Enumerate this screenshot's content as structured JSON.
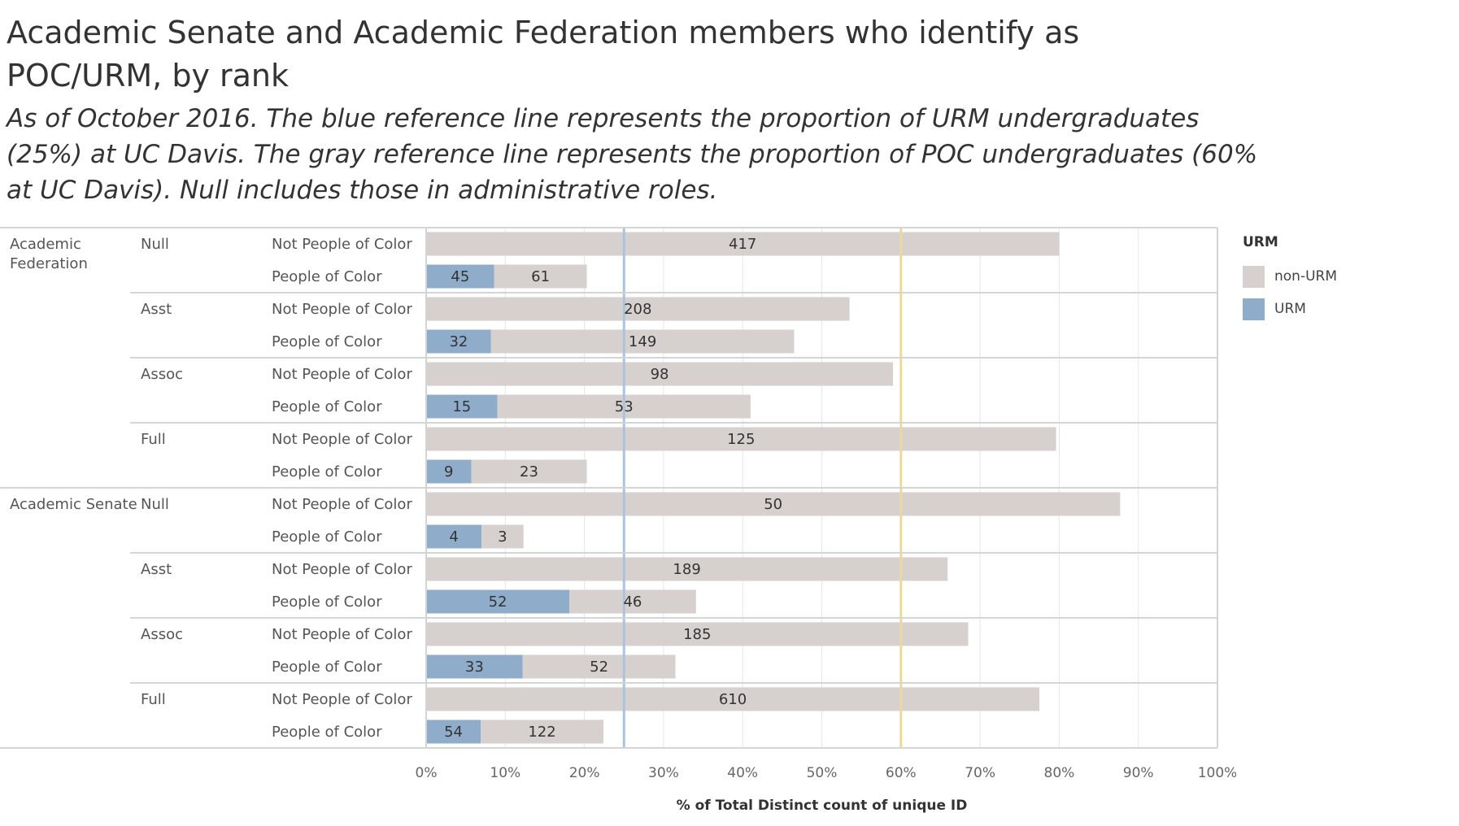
{
  "title": "Academic Senate and Academic Federation members who identify as POC/URM, by rank",
  "subtitle": "As of October 2016. The blue reference line represents the proportion of URM undergraduates (25%) at UC Davis. The gray reference line represents the proportion of POC undergraduates (60% at UC Davis). Null includes those in administrative roles.",
  "colors": {
    "non_urm": "#d6d0ce",
    "urm": "#8fadcb",
    "urm_ref": "#a9c4dc",
    "poc_ref": "#ecd89a",
    "grid": "#e6e6e6",
    "border": "#d4d4d4"
  },
  "legend": {
    "title": "URM",
    "items": [
      {
        "label": "non-URM",
        "color": "#d6d0ce"
      },
      {
        "label": "URM",
        "color": "#8fadcb"
      }
    ]
  },
  "chart_data": {
    "type": "bar",
    "orientation": "horizontal",
    "stacked": true,
    "xlabel": "% of Total Distinct count of unique ID",
    "xlim": [
      0,
      100
    ],
    "x_ticks": [
      "0%",
      "10%",
      "20%",
      "30%",
      "40%",
      "50%",
      "60%",
      "70%",
      "80%",
      "90%",
      "100%"
    ],
    "reference_lines": [
      {
        "name": "URM undergraduates",
        "value": 25,
        "color": "#a9c4dc"
      },
      {
        "name": "POC undergraduates",
        "value": 60,
        "color": "#ecd89a"
      }
    ],
    "series": [
      "URM",
      "non-URM"
    ],
    "groups": [
      {
        "name": "Academic Federation",
        "ranks": [
          {
            "name": "Null",
            "rows": [
              {
                "label": "Not People of Color",
                "urm": null,
                "non_urm": 417,
                "urm_pct": 0,
                "non_urm_pct": 80
              },
              {
                "label": "People of Color",
                "urm": 45,
                "non_urm": 61,
                "urm_pct": 8.6,
                "non_urm_pct": 11.7
              }
            ]
          },
          {
            "name": "Asst",
            "rows": [
              {
                "label": "Not People of Color",
                "urm": null,
                "non_urm": 208,
                "urm_pct": 0,
                "non_urm_pct": 53.5
              },
              {
                "label": "People of Color",
                "urm": 32,
                "non_urm": 149,
                "urm_pct": 8.2,
                "non_urm_pct": 38.3
              }
            ]
          },
          {
            "name": "Assoc",
            "rows": [
              {
                "label": "Not People of Color",
                "urm": null,
                "non_urm": 98,
                "urm_pct": 0,
                "non_urm_pct": 59
              },
              {
                "label": "People of Color",
                "urm": 15,
                "non_urm": 53,
                "urm_pct": 9,
                "non_urm_pct": 32
              }
            ]
          },
          {
            "name": "Full",
            "rows": [
              {
                "label": "Not People of Color",
                "urm": null,
                "non_urm": 125,
                "urm_pct": 0,
                "non_urm_pct": 79.6
              },
              {
                "label": "People of Color",
                "urm": 9,
                "non_urm": 23,
                "urm_pct": 5.7,
                "non_urm_pct": 14.6
              }
            ]
          }
        ]
      },
      {
        "name": "Academic Senate",
        "ranks": [
          {
            "name": "Null",
            "rows": [
              {
                "label": "Not People of Color",
                "urm": null,
                "non_urm": 50,
                "urm_pct": 0,
                "non_urm_pct": 87.7
              },
              {
                "label": "People of Color",
                "urm": 4,
                "non_urm": 3,
                "urm_pct": 7,
                "non_urm_pct": 5.3
              }
            ]
          },
          {
            "name": "Asst",
            "rows": [
              {
                "label": "Not People of Color",
                "urm": null,
                "non_urm": 189,
                "urm_pct": 0,
                "non_urm_pct": 65.9
              },
              {
                "label": "People of Color",
                "urm": 52,
                "non_urm": 46,
                "urm_pct": 18.1,
                "non_urm_pct": 16
              }
            ]
          },
          {
            "name": "Assoc",
            "rows": [
              {
                "label": "Not People of Color",
                "urm": null,
                "non_urm": 185,
                "urm_pct": 0,
                "non_urm_pct": 68.5
              },
              {
                "label": "People of Color",
                "urm": 33,
                "non_urm": 52,
                "urm_pct": 12.2,
                "non_urm_pct": 19.3
              }
            ]
          },
          {
            "name": "Full",
            "rows": [
              {
                "label": "Not People of Color",
                "urm": null,
                "non_urm": 610,
                "urm_pct": 0,
                "non_urm_pct": 77.5
              },
              {
                "label": "People of Color",
                "urm": 54,
                "non_urm": 122,
                "urm_pct": 6.9,
                "non_urm_pct": 15.5
              }
            ]
          }
        ]
      }
    ]
  }
}
